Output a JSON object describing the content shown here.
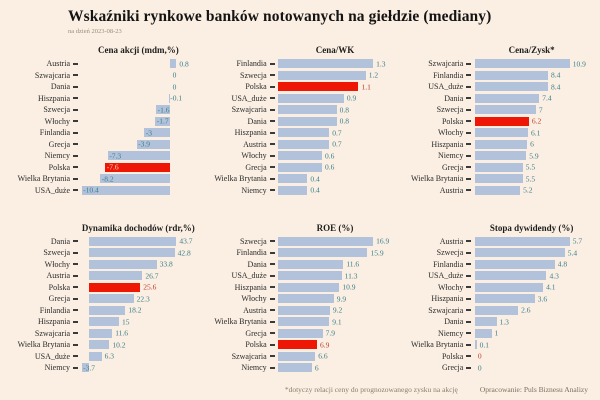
{
  "page": {
    "title": "Wskaźniki rynkowe banków notowanych na giełdzie (mediany)",
    "subtitle": "na dzień 2023-08-23",
    "footnote": "*dotyczy relacji ceny do prognozowanego zysku na akcję",
    "source": "Opracowanie: Puls Biznesu Analizy"
  },
  "colors": {
    "background": "#faefe2",
    "bar": "#b2c2da",
    "bar_highlight": "#ee1605",
    "value_label": "#3a7d8c",
    "value_label_highlight": "#bf3a2b",
    "value_label_on_red_bar": "#f6e3cf",
    "category_label": "#2b2b2b",
    "muted_text": "#8c7d6d"
  },
  "chart_data": [
    {
      "type": "bar",
      "orientation": "horizontal",
      "title": "Cena akcji (mdm,%)",
      "highlight_category": "Polska",
      "categories": [
        "Austria",
        "Szwajcaria",
        "Dania",
        "Hiszpania",
        "Szwecja",
        "Włochy",
        "Finlandia",
        "Grecja",
        "Niemcy",
        "Polska",
        "Wielka Brytania",
        "USA_duże"
      ],
      "values": [
        0.8,
        0,
        0,
        -0.1,
        -1.6,
        -1.7,
        -3,
        -3.9,
        -7.3,
        -7.6,
        -8.2,
        -10.4
      ]
    },
    {
      "type": "bar",
      "orientation": "horizontal",
      "title": "Cena/WK",
      "highlight_category": "Polska",
      "categories": [
        "Finlandia",
        "Szwecja",
        "Polska",
        "USA_duże",
        "Szwajcaria",
        "Dania",
        "Hiszpania",
        "Austria",
        "Włochy",
        "Grecja",
        "Wielka Brytania",
        "Niemcy"
      ],
      "values": [
        1.3,
        1.2,
        1.1,
        0.9,
        0.8,
        0.8,
        0.7,
        0.7,
        0.6,
        0.6,
        0.4,
        0.4
      ]
    },
    {
      "type": "bar",
      "orientation": "horizontal",
      "title": "Cena/Zysk*",
      "highlight_category": "Polska",
      "categories": [
        "Szwajcaria",
        "Finlandia",
        "USA_duże",
        "Dania",
        "Szwecja",
        "Polska",
        "Włochy",
        "Hiszpania",
        "Niemcy",
        "Grecja",
        "Wielka Brytania",
        "Austria"
      ],
      "values": [
        10.9,
        8.4,
        8.4,
        7.4,
        7,
        6.2,
        6.1,
        6,
        5.9,
        5.5,
        5.5,
        5.2
      ]
    },
    {
      "type": "bar",
      "orientation": "horizontal",
      "title": "Dynamika dochodów (rdr,%)",
      "highlight_category": "Polska",
      "categories": [
        "Dania",
        "Szwecja",
        "Włochy",
        "Austria",
        "Polska",
        "Grecja",
        "Finlandia",
        "Hiszpania",
        "Szwajcaria",
        "Wielka Brytania",
        "USA_duże",
        "Niemcy"
      ],
      "values": [
        43.7,
        42.8,
        33.8,
        26.7,
        25.6,
        22.3,
        18.2,
        15,
        11.6,
        10.2,
        6.3,
        -3.7
      ]
    },
    {
      "type": "bar",
      "orientation": "horizontal",
      "title": "ROE (%)",
      "highlight_category": "Polska",
      "categories": [
        "Szwecja",
        "Finlandia",
        "Dania",
        "USA_duże",
        "Hiszpania",
        "Włochy",
        "Austria",
        "Wielka Brytania",
        "Grecja",
        "Polska",
        "Szwajcaria",
        "Niemcy"
      ],
      "values": [
        16.9,
        15.9,
        11.6,
        11.3,
        10.9,
        9.9,
        9.2,
        9.1,
        7.9,
        6.9,
        6.6,
        6
      ]
    },
    {
      "type": "bar",
      "orientation": "horizontal",
      "title": "Stopa dywidendy (%)",
      "highlight_category": "Polska",
      "categories": [
        "Austria",
        "Szwecja",
        "Finlandia",
        "USA_duże",
        "Włochy",
        "Hiszpania",
        "Szwajcaria",
        "Dania",
        "Niemcy",
        "Wielka Brytania",
        "Polska",
        "Grecja"
      ],
      "values": [
        5.7,
        5.4,
        4.8,
        4.3,
        4.1,
        3.6,
        2.6,
        1.3,
        1,
        0.1,
        0,
        0
      ]
    }
  ]
}
